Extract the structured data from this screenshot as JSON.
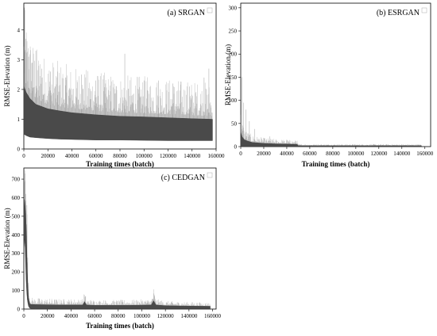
{
  "chart_data": [
    {
      "type": "area",
      "title": "(a) SRGAN",
      "xlabel": "Training times (batch)",
      "ylabel": "RMSE-Elevation (m)",
      "xlim": [
        0,
        160000
      ],
      "ylim": [
        0,
        4.9
      ],
      "xticks": [
        "0",
        "20000",
        "40000",
        "60000",
        "80000",
        "100000",
        "120000",
        "140000",
        "160000"
      ],
      "xtick_values": [
        0,
        20000,
        40000,
        60000,
        80000,
        100000,
        120000,
        140000,
        160000
      ],
      "yticks": [
        "0",
        "1",
        "2",
        "3",
        "4"
      ],
      "ytick_values": [
        0,
        1,
        2,
        3,
        4
      ],
      "band": {
        "x": [
          0,
          2000,
          5000,
          10000,
          20000,
          30000,
          40000,
          60000,
          80000,
          100000,
          120000,
          140000,
          157000
        ],
        "low": [
          0.5,
          0.45,
          0.4,
          0.38,
          0.35,
          0.33,
          0.32,
          0.3,
          0.3,
          0.29,
          0.28,
          0.28,
          0.28
        ],
        "high": [
          2.1,
          1.9,
          1.7,
          1.5,
          1.35,
          1.28,
          1.22,
          1.15,
          1.1,
          1.08,
          1.05,
          1.02,
          1.0
        ]
      },
      "spikes": [
        [
          500,
          4.75
        ],
        [
          1500,
          3.7
        ],
        [
          4000,
          3.1
        ],
        [
          7000,
          2.9
        ],
        [
          10000,
          3.3
        ],
        [
          15000,
          2.7
        ],
        [
          22000,
          2.6
        ],
        [
          28000,
          2.6
        ],
        [
          35000,
          2.4
        ],
        [
          48000,
          2.5
        ],
        [
          60000,
          2.3
        ],
        [
          68000,
          2.2
        ],
        [
          84000,
          3.2
        ],
        [
          100000,
          2.3
        ],
        [
          112000,
          2.3
        ],
        [
          124000,
          2.2
        ],
        [
          138000,
          2.1
        ],
        [
          150000,
          2.4
        ],
        [
          154000,
          2.7
        ]
      ],
      "legend": "top-right"
    },
    {
      "type": "area",
      "title": "(b) ESRGAN",
      "xlabel": "Training times (batch)",
      "ylabel": "RMSE-Elevation (m)",
      "xlim": [
        0,
        165000
      ],
      "ylim": [
        0,
        310
      ],
      "xticks": [
        "0",
        "20000",
        "40000",
        "60000",
        "80000",
        "100000",
        "120000",
        "140000",
        "160000"
      ],
      "xtick_values": [
        0,
        20000,
        40000,
        60000,
        80000,
        100000,
        120000,
        140000,
        160000
      ],
      "yticks": [
        "0",
        "50",
        "100",
        "150",
        "200",
        "250",
        "300"
      ],
      "ytick_values": [
        0,
        50,
        100,
        150,
        200,
        250,
        300
      ],
      "band": {
        "x": [
          0,
          1000,
          3000,
          6000,
          10000,
          20000,
          30000,
          40000,
          49000,
          50000,
          60000,
          100000,
          157000
        ],
        "low": [
          0,
          0,
          0,
          0,
          0,
          0,
          0,
          0,
          0,
          0,
          0,
          0,
          0
        ],
        "high": [
          30,
          22,
          15,
          12,
          9,
          7,
          6,
          5.5,
          5,
          2,
          2,
          2,
          2
        ]
      },
      "spikes": [
        [
          300,
          300
        ],
        [
          1200,
          150
        ],
        [
          2500,
          95
        ],
        [
          4500,
          80
        ],
        [
          7500,
          55
        ],
        [
          12000,
          38
        ],
        [
          25000,
          22
        ],
        [
          40000,
          15
        ],
        [
          48000,
          12
        ],
        [
          120000,
          3
        ]
      ],
      "legend": "top-right"
    },
    {
      "type": "area",
      "title": "(c) CEDGAN",
      "xlabel": "Training times (batch)",
      "ylabel": "RMSE-Elevation (m)",
      "xlim": [
        0,
        163000
      ],
      "ylim": [
        0,
        760
      ],
      "xticks": [
        "0",
        "20000",
        "40000",
        "60000",
        "80000",
        "100000",
        "120000",
        "140000",
        "160000"
      ],
      "xtick_values": [
        0,
        20000,
        40000,
        60000,
        80000,
        100000,
        120000,
        140000,
        160000
      ],
      "yticks": [
        "0",
        "100",
        "200",
        "300",
        "400",
        "500",
        "600",
        "700"
      ],
      "ytick_values": [
        0,
        100,
        200,
        300,
        400,
        500,
        600,
        700
      ],
      "band": {
        "x": [
          0,
          500,
          1000,
          1500,
          2000,
          2500,
          3000,
          3500,
          4000,
          5000,
          6000,
          10000,
          30000,
          50000,
          51500,
          53000,
          60000,
          90000,
          108000,
          110000,
          112000,
          120000,
          140000,
          158000
        ],
        "low": [
          300,
          380,
          350,
          250,
          150,
          90,
          50,
          30,
          15,
          5,
          3,
          3,
          3,
          3,
          3,
          3,
          3,
          3,
          3,
          3,
          3,
          3,
          3,
          3
        ],
        "high": [
          540,
          590,
          560,
          520,
          440,
          320,
          200,
          110,
          60,
          30,
          25,
          24,
          22,
          22,
          40,
          22,
          20,
          20,
          22,
          45,
          22,
          18,
          16,
          15
        ]
      },
      "spikes": [
        [
          300,
          745
        ],
        [
          1000,
          690
        ],
        [
          1800,
          620
        ],
        [
          2600,
          560
        ]
      ],
      "legend": "top-right"
    }
  ]
}
